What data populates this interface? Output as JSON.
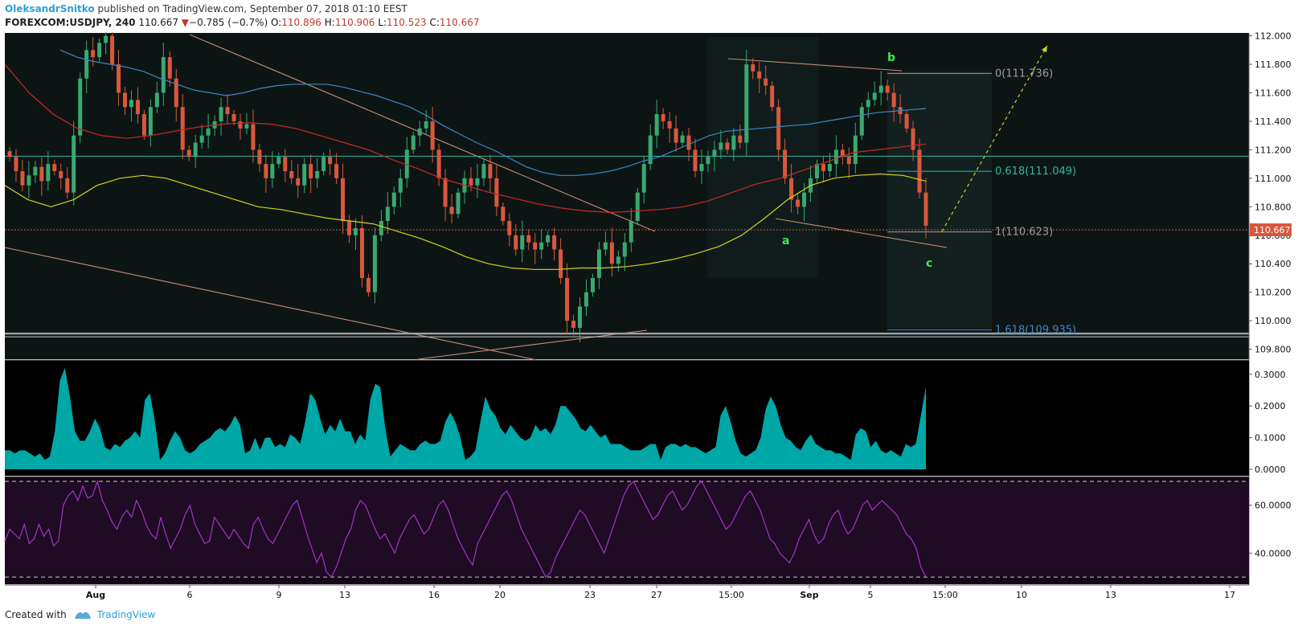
{
  "header": {
    "author": "OleksandrSnitko",
    "published": "published on TradingView.com, September 07, 2018 01:10 EEST",
    "symbol": "FOREXCOM:USDJPY, 240",
    "last": "110.667",
    "change_arrow": "▼",
    "change": "−0.785 (−0.7%)",
    "o_label": "O:",
    "o": "110.896",
    "h_label": "H:",
    "h": "110.906",
    "l_label": "L:",
    "l": "110.523",
    "c_label": "C:",
    "c": "110.667"
  },
  "footer": {
    "created_with": "Created with",
    "brand": "TradingView"
  },
  "colors": {
    "bg": "#0d1514",
    "up": "#3aa871",
    "down": "#d9573d",
    "ma_blue": "#3d86c6",
    "ma_red": "#c92b22",
    "ma_yellow": "#d4d11e",
    "atr": "#00a7a7",
    "rsi": "#a234c9",
    "trend": "#c98b78"
  },
  "chart_data": [
    {
      "type": "candlestick",
      "panel": "price",
      "ylim": [
        109.73,
        112.02
      ],
      "yticks": [
        "112.000",
        "111.800",
        "111.600",
        "111.400",
        "111.200",
        "111.000",
        "110.800",
        "110.600",
        "110.400",
        "110.200",
        "110.000",
        "109.800"
      ],
      "x_ticks": [
        "Aug",
        "6",
        "9",
        "13",
        "16",
        "20",
        "23",
        "27",
        "15:00",
        "Sep",
        "5",
        "15:00",
        "10",
        "13",
        "17"
      ],
      "last_price_label": "110.667",
      "fib": [
        {
          "label": "0(111.736)",
          "value": 111.736,
          "color": "#9aa0a0"
        },
        {
          "label": "0.618(111.049)",
          "value": 111.049,
          "color": "#2fb9a4"
        },
        {
          "label": "1(110.623)",
          "value": 110.623,
          "color": "#9aa0a0"
        },
        {
          "label": "1.618(109.935)",
          "value": 109.935,
          "color": "#3d86c6"
        }
      ],
      "wave_labels": [
        "b",
        "a",
        "c"
      ],
      "horizontal_levels": [
        111.155,
        109.91
      ],
      "closes": [
        111.15,
        111.05,
        110.95,
        111.02,
        111.08,
        110.98,
        111.1,
        111.05,
        111.0,
        110.9,
        111.3,
        111.7,
        111.9,
        111.85,
        111.95,
        112.0,
        111.8,
        111.6,
        111.5,
        111.55,
        111.45,
        111.3,
        111.5,
        111.6,
        111.85,
        111.7,
        111.5,
        111.2,
        111.15,
        111.25,
        111.3,
        111.35,
        111.4,
        111.5,
        111.45,
        111.4,
        111.35,
        111.38,
        111.2,
        111.1,
        111.0,
        111.1,
        111.15,
        111.05,
        111.0,
        110.95,
        111.1,
        111.0,
        111.05,
        111.15,
        111.1,
        111.0,
        110.7,
        110.6,
        110.65,
        110.3,
        110.2,
        110.6,
        110.7,
        110.8,
        110.9,
        111.0,
        111.2,
        111.3,
        111.35,
        111.4,
        111.2,
        111.0,
        110.8,
        110.75,
        110.9,
        111.0,
        110.95,
        111.0,
        111.1,
        111.0,
        110.8,
        110.7,
        110.6,
        110.5,
        110.6,
        110.55,
        110.5,
        110.55,
        110.6,
        110.5,
        110.3,
        110.0,
        109.95,
        110.1,
        110.2,
        110.3,
        110.5,
        110.55,
        110.4,
        110.45,
        110.55,
        110.7,
        110.9,
        111.1,
        111.3,
        111.45,
        111.4,
        111.35,
        111.25,
        111.3,
        111.2,
        111.05,
        111.1,
        111.15,
        111.2,
        111.25,
        111.2,
        111.3,
        111.25,
        111.8,
        111.75,
        111.7,
        111.65,
        111.5,
        111.2,
        111.0,
        110.85,
        110.8,
        110.9,
        111.0,
        111.1,
        111.05,
        111.1,
        111.2,
        111.15,
        111.1,
        111.3,
        111.5,
        111.55,
        111.6,
        111.65,
        111.6,
        111.5,
        111.45,
        111.35,
        111.2,
        110.9,
        110.667
      ],
      "ma_blue": [
        111.9,
        111.85,
        111.82,
        111.8,
        111.78,
        111.75,
        111.7,
        111.66,
        111.62,
        111.6,
        111.58,
        111.6,
        111.63,
        111.65,
        111.66,
        111.66,
        111.66,
        111.64,
        111.61,
        111.58,
        111.54,
        111.5,
        111.44,
        111.37,
        111.31,
        111.25,
        111.2,
        111.14,
        111.08,
        111.04,
        111.02,
        111.02,
        111.03,
        111.05,
        111.08,
        111.12,
        111.15,
        111.2,
        111.25,
        111.3,
        111.33,
        111.34,
        111.35,
        111.36,
        111.37,
        111.38,
        111.4,
        111.42,
        111.44,
        111.46,
        111.47,
        111.48,
        111.49
      ],
      "ma_red": [
        111.8,
        111.6,
        111.45,
        111.35,
        111.3,
        111.28,
        111.3,
        111.33,
        111.36,
        111.38,
        111.39,
        111.38,
        111.35,
        111.3,
        111.25,
        111.2,
        111.13,
        111.07,
        111.0,
        110.95,
        110.9,
        110.86,
        110.82,
        110.79,
        110.77,
        110.76,
        110.77,
        110.78,
        110.8,
        110.84,
        110.9,
        110.96,
        111.0,
        111.06,
        111.12,
        111.18,
        111.2,
        111.22,
        111.24
      ],
      "ma_yellow": [
        110.95,
        110.85,
        110.8,
        110.85,
        110.95,
        111.0,
        111.02,
        111.0,
        110.95,
        110.9,
        110.85,
        110.8,
        110.78,
        110.75,
        110.72,
        110.7,
        110.68,
        110.63,
        110.58,
        110.52,
        110.45,
        110.4,
        110.37,
        110.36,
        110.36,
        110.37,
        110.37,
        110.38,
        110.4,
        110.43,
        110.47,
        110.52,
        110.6,
        110.72,
        110.85,
        110.95,
        111.0,
        111.02,
        111.03,
        111.02,
        110.98
      ]
    },
    {
      "type": "area",
      "panel": "atr",
      "ylim": [
        0,
        0.34
      ],
      "yticks": [
        "0.3000",
        "0.2000",
        "0.1000",
        "0.0000"
      ],
      "values": [
        0.06,
        0.06,
        0.05,
        0.06,
        0.06,
        0.05,
        0.04,
        0.05,
        0.03,
        0.04,
        0.12,
        0.28,
        0.32,
        0.23,
        0.12,
        0.09,
        0.09,
        0.12,
        0.16,
        0.13,
        0.07,
        0.06,
        0.08,
        0.07,
        0.09,
        0.1,
        0.12,
        0.1,
        0.22,
        0.24,
        0.15,
        0.03,
        0.05,
        0.09,
        0.12,
        0.1,
        0.06,
        0.05,
        0.06,
        0.08,
        0.09,
        0.1,
        0.12,
        0.13,
        0.12,
        0.14,
        0.17,
        0.14,
        0.05,
        0.06,
        0.1,
        0.06,
        0.1,
        0.1,
        0.07,
        0.08,
        0.07,
        0.11,
        0.1,
        0.08,
        0.15,
        0.24,
        0.22,
        0.16,
        0.11,
        0.14,
        0.12,
        0.16,
        0.12,
        0.12,
        0.08,
        0.11,
        0.09,
        0.22,
        0.27,
        0.26,
        0.13,
        0.04,
        0.06,
        0.08,
        0.07,
        0.06,
        0.06,
        0.08,
        0.09,
        0.08,
        0.08,
        0.09,
        0.15,
        0.18,
        0.15,
        0.1,
        0.03,
        0.04,
        0.06,
        0.15,
        0.23,
        0.19,
        0.17,
        0.13,
        0.11,
        0.14,
        0.12,
        0.1,
        0.09,
        0.1,
        0.14,
        0.12,
        0.13,
        0.11,
        0.14,
        0.2,
        0.2,
        0.18,
        0.16,
        0.13,
        0.12,
        0.14,
        0.12,
        0.1,
        0.11,
        0.08,
        0.08,
        0.08,
        0.07,
        0.06,
        0.06,
        0.06,
        0.07,
        0.08,
        0.08,
        0.03,
        0.07,
        0.08,
        0.08,
        0.07,
        0.08,
        0.07,
        0.07,
        0.06,
        0.05,
        0.06,
        0.07,
        0.17,
        0.2,
        0.15,
        0.09,
        0.05,
        0.04,
        0.05,
        0.06,
        0.1,
        0.19,
        0.23,
        0.2,
        0.14,
        0.1,
        0.09,
        0.07,
        0.06,
        0.09,
        0.11,
        0.08,
        0.07,
        0.06,
        0.06,
        0.05,
        0.05,
        0.04,
        0.03,
        0.11,
        0.13,
        0.12,
        0.07,
        0.09,
        0.06,
        0.05,
        0.06,
        0.05,
        0.04,
        0.08,
        0.07,
        0.08,
        0.17,
        0.26
      ]
    },
    {
      "type": "line",
      "panel": "rsi",
      "ylim": [
        27,
        72
      ],
      "yticks": [
        "60.0000",
        "40.0000"
      ],
      "band": [
        30,
        70
      ],
      "values": [
        45,
        50,
        48,
        46,
        52,
        44,
        46,
        52,
        47,
        50,
        43,
        45,
        60,
        64,
        66,
        62,
        68,
        63,
        64,
        70,
        62,
        58,
        53,
        50,
        55,
        58,
        55,
        62,
        58,
        52,
        48,
        46,
        55,
        48,
        42,
        46,
        50,
        56,
        60,
        52,
        48,
        44,
        45,
        55,
        52,
        49,
        46,
        50,
        47,
        44,
        42,
        52,
        55,
        50,
        46,
        44,
        48,
        52,
        56,
        60,
        62,
        55,
        48,
        42,
        36,
        40,
        32,
        30,
        34,
        40,
        46,
        50,
        58,
        62,
        60,
        55,
        50,
        46,
        48,
        44,
        40,
        46,
        50,
        54,
        56,
        52,
        48,
        50,
        55,
        60,
        62,
        58,
        52,
        46,
        42,
        38,
        35,
        44,
        48,
        52,
        56,
        60,
        64,
        66,
        62,
        56,
        50,
        46,
        42,
        38,
        34,
        30,
        32,
        38,
        42,
        46,
        50,
        54,
        58,
        56,
        52,
        48,
        44,
        40,
        46,
        52,
        58,
        64,
        68,
        70,
        66,
        62,
        58,
        54,
        56,
        60,
        64,
        66,
        62,
        58,
        60,
        64,
        68,
        70,
        66,
        62,
        58,
        54,
        50,
        52,
        56,
        60,
        64,
        66,
        62,
        58,
        52,
        46,
        44,
        40,
        38,
        36,
        40,
        46,
        50,
        54,
        48,
        44,
        46,
        52,
        56,
        58,
        52,
        48,
        50,
        55,
        60,
        62,
        58,
        60,
        62,
        60,
        58,
        56,
        52,
        48,
        46,
        42,
        34,
        30
      ]
    }
  ]
}
